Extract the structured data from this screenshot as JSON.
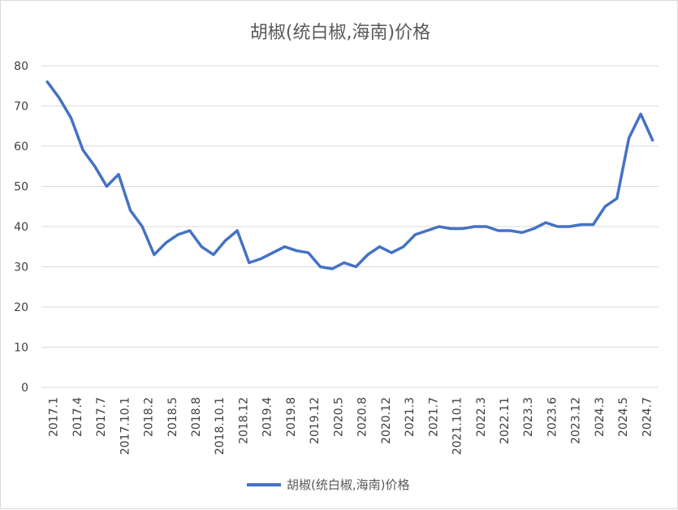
{
  "chart_data": {
    "type": "line",
    "title": "胡椒(统白椒,海南)价格",
    "xlabel": "",
    "ylabel": "",
    "ylim": [
      0,
      80
    ],
    "y_ticks": [
      "0",
      "10",
      "20",
      "30",
      "40",
      "50",
      "60",
      "70",
      "80"
    ],
    "x_tick_labels": [
      "2017.1",
      "2017.4",
      "2017.7",
      "2017.10.1",
      "2018.2",
      "2018.5",
      "2018.8",
      "2018.10.1",
      "2018.12",
      "2019.4",
      "2019.8",
      "2019.12",
      "2020.5",
      "2020.8",
      "2020.12",
      "2021.3",
      "2021.7",
      "2021.10.1",
      "2022.3",
      "2022.11",
      "2023.3",
      "2023.6",
      "2023.12",
      "2024.3",
      "2024.5",
      "2024.7"
    ],
    "grid": true,
    "legend_position": "bottom",
    "series": [
      {
        "name": "胡椒(统白椒,海南)价格",
        "color": "#4472c4",
        "values": [
          76,
          72,
          67,
          59,
          55,
          50,
          53,
          44,
          40,
          33,
          36,
          38,
          39,
          35,
          33,
          36.5,
          39,
          31,
          32,
          33.5,
          35,
          34,
          33.5,
          30,
          29.5,
          31,
          30,
          33,
          35,
          33.5,
          35,
          38,
          39,
          40,
          39.5,
          39.5,
          40,
          40,
          39,
          39,
          38.5,
          39.5,
          41,
          40,
          40,
          40.5,
          40.5,
          45,
          47,
          62,
          68,
          61.5
        ]
      }
    ]
  }
}
